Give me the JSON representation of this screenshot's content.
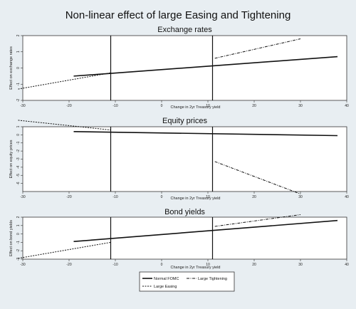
{
  "title": "Non-linear effect of large Easing and Tightening",
  "legend": [
    {
      "label": "Normal FOMC",
      "style": "solid"
    },
    {
      "label": "Large Tightening",
      "style": "dashdot"
    },
    {
      "label": "Large Easing",
      "style": "dashed"
    }
  ],
  "chart_data": [
    {
      "type": "line",
      "title": "Exchange rates",
      "xlabel": "Change in 2yr Treasury yield",
      "ylabel": "Effect on exchange rates",
      "xlim": [
        -30,
        40
      ],
      "ylim": [
        -2,
        2
      ],
      "xticks": [
        -30,
        -20,
        -10,
        0,
        10,
        20,
        30,
        40
      ],
      "yticks": [
        -2,
        -1,
        0,
        1,
        2
      ],
      "vlines": [
        -11,
        11
      ],
      "series": [
        {
          "name": "Normal FOMC",
          "x": [
            -19,
            38
          ],
          "y": [
            -0.5,
            0.7
          ]
        },
        {
          "name": "Large Easing",
          "x": [
            -31,
            -11
          ],
          "y": [
            -1.3,
            -0.3
          ]
        },
        {
          "name": "Large Tightening",
          "x": [
            11.5,
            30
          ],
          "y": [
            0.6,
            1.8
          ]
        }
      ]
    },
    {
      "type": "line",
      "title": "Equity prices",
      "xlabel": "Change in 2yr Treasury yield",
      "ylabel": "Effect on equity prices",
      "xlim": [
        -30,
        40
      ],
      "ylim": [
        -7,
        1
      ],
      "xticks": [
        -30,
        -20,
        -10,
        0,
        10,
        20,
        30,
        40
      ],
      "yticks": [
        -6,
        -5,
        -4,
        -3,
        -2,
        -1,
        0,
        1
      ],
      "vlines": [
        -11,
        11
      ],
      "series": [
        {
          "name": "Normal FOMC",
          "x": [
            -19,
            38
          ],
          "y": [
            0.4,
            -0.1
          ]
        },
        {
          "name": "Large Easing",
          "x": [
            -31,
            -11
          ],
          "y": [
            1.8,
            0.6
          ]
        },
        {
          "name": "Large Tightening",
          "x": [
            11.5,
            30
          ],
          "y": [
            -3.3,
            -7.3
          ]
        }
      ]
    },
    {
      "type": "line",
      "title": "Bond yields",
      "xlabel": "Change in 2yr Treasury yield",
      "ylabel": "Effect on bond yields",
      "xlim": [
        -30,
        40
      ],
      "ylim": [
        -3,
        2
      ],
      "xticks": [
        -30,
        -20,
        -10,
        0,
        10,
        20,
        30,
        40
      ],
      "yticks": [
        -3,
        -2,
        -1,
        0,
        1,
        2
      ],
      "vlines": [
        -11,
        11
      ],
      "series": [
        {
          "name": "Normal FOMC",
          "x": [
            -19,
            38
          ],
          "y": [
            -0.9,
            1.6
          ]
        },
        {
          "name": "Large Easing",
          "x": [
            -31,
            -11
          ],
          "y": [
            -2.9,
            -1.0
          ]
        },
        {
          "name": "Large Tightening",
          "x": [
            11.5,
            30
          ],
          "y": [
            0.9,
            2.3
          ]
        }
      ]
    }
  ]
}
